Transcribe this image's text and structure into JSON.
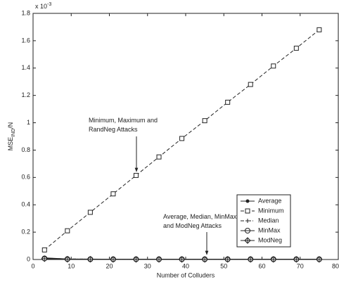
{
  "chart_data": {
    "type": "line",
    "x_multiplier": {
      "base": "x 10",
      "exponent": "-3"
    },
    "xlabel": "Number of Colluders",
    "ylabel": {
      "main": "MSE",
      "sub": "IND",
      "rest": "/N"
    },
    "x": [
      3,
      9,
      15,
      21,
      27,
      33,
      39,
      45,
      51,
      57,
      63,
      69,
      75
    ],
    "series": [
      {
        "name": "Average",
        "color": "#222222",
        "marker": "dot",
        "dash": "solid",
        "values": [
          0.012,
          0.004,
          0.003,
          0.002,
          0.002,
          0.002,
          0.002,
          0.002,
          0.002,
          0.002,
          0.002,
          0.002,
          0.002
        ]
      },
      {
        "name": "Minimum",
        "color": "#222222",
        "marker": "square",
        "dash": "dashed",
        "values": [
          0.07,
          0.21,
          0.345,
          0.48,
          0.615,
          0.75,
          0.885,
          1.015,
          1.15,
          1.28,
          1.415,
          1.545,
          1.68
        ]
      },
      {
        "name": "Median",
        "color": "#222222",
        "marker": "plus",
        "dash": "dashdot",
        "values": [
          0.01,
          0.004,
          0.003,
          0.002,
          0.002,
          0.002,
          0.002,
          0.002,
          0.002,
          0.002,
          0.002,
          0.002,
          0.002
        ]
      },
      {
        "name": "MinMax",
        "color": "#222222",
        "marker": "circleminus",
        "dash": "solid",
        "values": [
          0.008,
          0.003,
          0.002,
          0.002,
          0.002,
          0.002,
          0.002,
          0.002,
          0.002,
          0.002,
          0.002,
          0.002,
          0.002
        ]
      },
      {
        "name": "ModNeg",
        "color": "#222222",
        "marker": "diamondplus",
        "dash": "solid",
        "values": [
          0.006,
          0.002,
          0.002,
          0.001,
          0.001,
          0.001,
          0.001,
          0.001,
          0.001,
          0.001,
          0.001,
          0.001,
          0.001
        ]
      }
    ],
    "annotations": [
      {
        "lines": [
          "Minimum, Maximum and",
          "RandNeg Attacks"
        ]
      },
      {
        "lines": [
          "Average, Median, MinMax",
          "and ModNeg Attacks"
        ]
      }
    ],
    "xlim": [
      0,
      80
    ],
    "xticks": [
      0,
      10,
      20,
      30,
      40,
      50,
      60,
      70,
      80
    ],
    "ylim": [
      0,
      1.8
    ],
    "yticks": [
      0,
      0.2,
      0.4,
      0.6,
      0.8,
      1,
      1.2,
      1.4,
      1.6,
      1.8
    ],
    "legend": "lower right"
  }
}
